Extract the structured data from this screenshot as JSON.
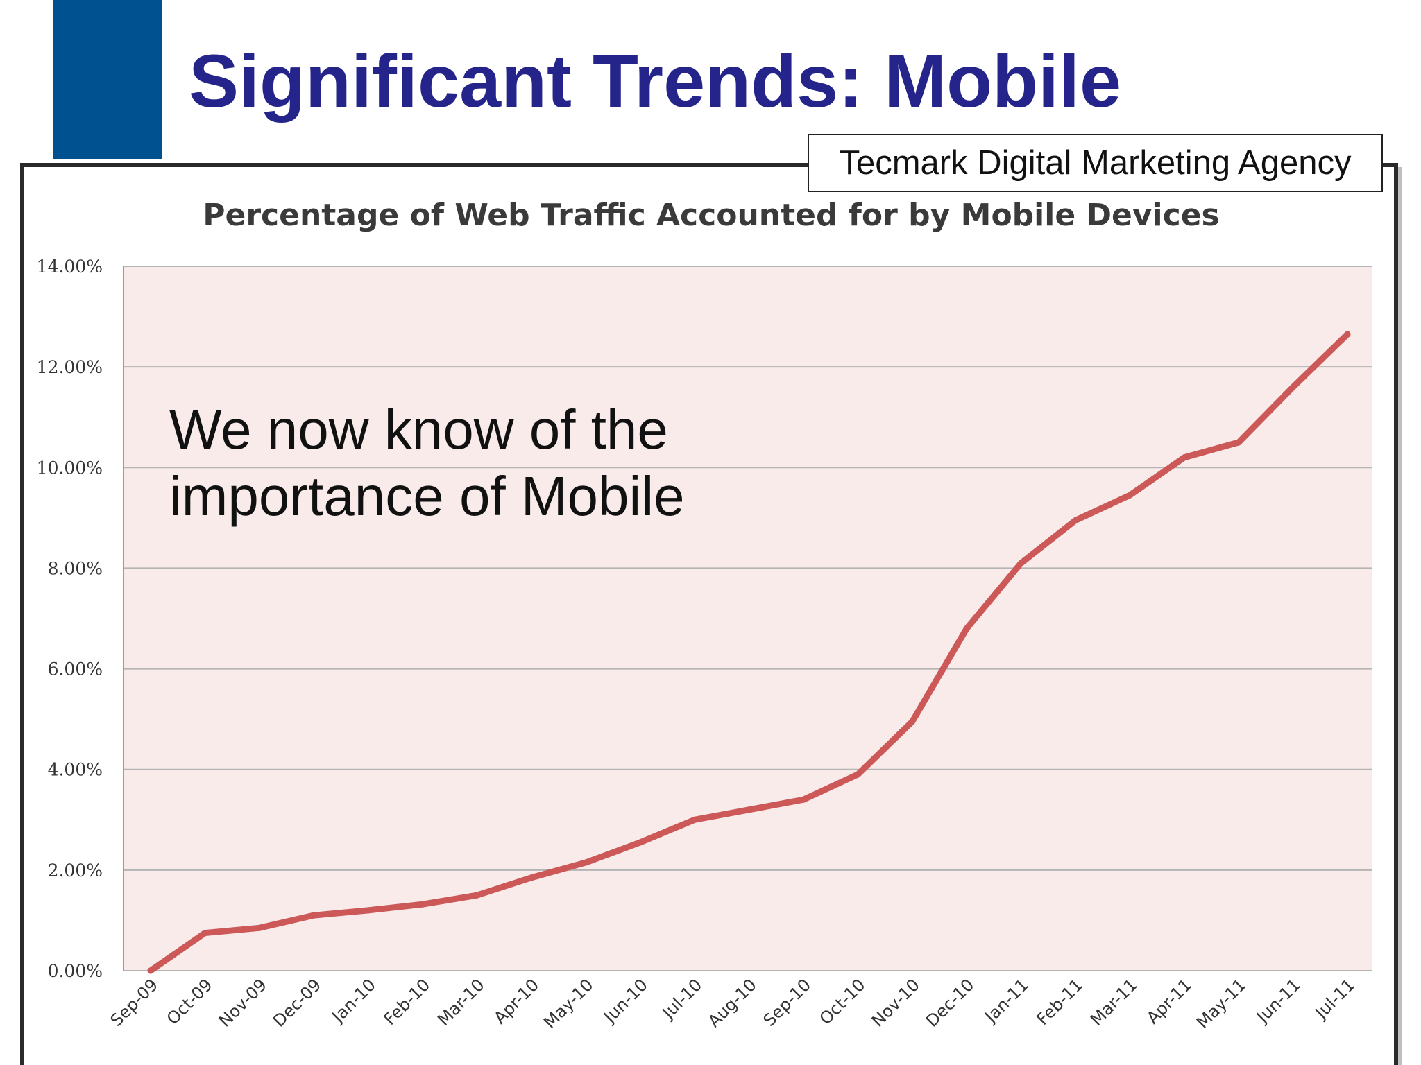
{
  "slide": {
    "title": "Significant Trends: Mobile",
    "source": "Tecmark Digital Marketing Agency",
    "callout_line1": "We now know of the",
    "callout_line2": "importance of Mobile",
    "accent_color": "#00518f",
    "title_color": "#24248a"
  },
  "chart_data": {
    "type": "line",
    "title": "Percentage of Web Traffic Accounted for by Mobile Devices",
    "xlabel": "",
    "ylabel": "",
    "categories": [
      "Sep-09",
      "Oct-09",
      "Nov-09",
      "Dec-09",
      "Jan-10",
      "Feb-10",
      "Mar-10",
      "Apr-10",
      "May-10",
      "Jun-10",
      "Jul-10",
      "Aug-10",
      "Sep-10",
      "Oct-10",
      "Nov-10",
      "Dec-10",
      "Jan-11",
      "Feb-11",
      "Mar-11",
      "Apr-11",
      "May-11",
      "Jun-11",
      "Jul-11"
    ],
    "series": [
      {
        "values": [
          0.0,
          0.75,
          0.85,
          1.1,
          1.2,
          1.32,
          1.5,
          1.85,
          2.15,
          2.55,
          3.0,
          3.2,
          3.4,
          3.9,
          4.95,
          6.8,
          8.1,
          8.95,
          9.45,
          10.2,
          10.5,
          11.6,
          12.65
        ],
        "color": "#cc5858"
      }
    ],
    "yticks": [
      "0.00%",
      "2.00%",
      "4.00%",
      "6.00%",
      "8.00%",
      "10.00%",
      "12.00%",
      "14.00%"
    ],
    "ylim": [
      0,
      14
    ],
    "grid": true,
    "plot_background": "#f8ebea",
    "gridline_color": "#b4b4b4"
  }
}
